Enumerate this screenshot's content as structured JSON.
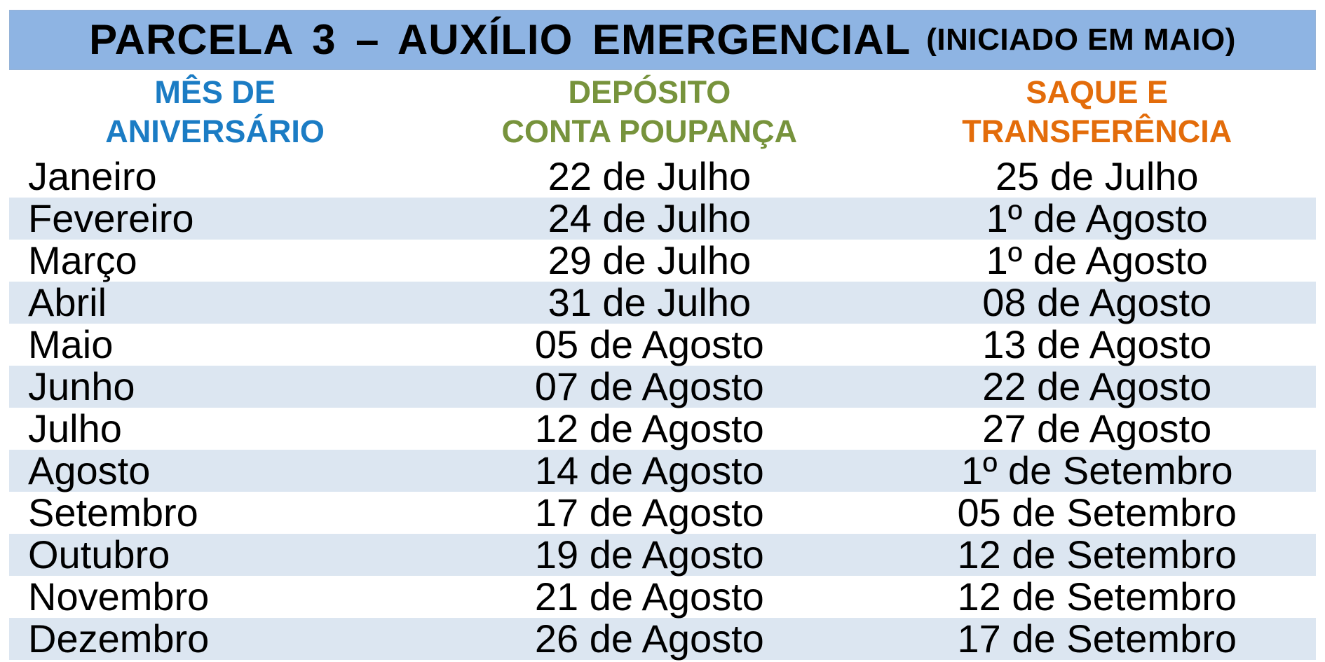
{
  "title": {
    "main": "PARCELA 3 – AUXÍLIO EMERGENCIAL",
    "note": "(INICIADO EM MAIO)"
  },
  "columns": [
    {
      "key": "month",
      "label": "MÊS DE\nANIVERSÁRIO",
      "color": "#1B7CC4"
    },
    {
      "key": "deposit",
      "label": "DEPÓSITO\nCONTA POUPANÇA",
      "color": "#77933C"
    },
    {
      "key": "saque",
      "label": "SAQUE E\nTRANSFERÊNCIA",
      "color": "#E36C0A"
    }
  ],
  "colors": {
    "title_bar_bg": "#8EB4E3",
    "stripe_row_bg": "#DCE6F1",
    "title_text": "#000000",
    "body_text": "#000000"
  },
  "rows": [
    {
      "month": "Janeiro",
      "deposit": "22 de Julho",
      "saque": "25 de Julho"
    },
    {
      "month": "Fevereiro",
      "deposit": "24 de Julho",
      "saque": "1º de Agosto"
    },
    {
      "month": "Março",
      "deposit": "29 de Julho",
      "saque": "1º de Agosto"
    },
    {
      "month": "Abril",
      "deposit": "31 de Julho",
      "saque": "08 de Agosto"
    },
    {
      "month": "Maio",
      "deposit": "05 de Agosto",
      "saque": "13 de Agosto"
    },
    {
      "month": "Junho",
      "deposit": "07 de Agosto",
      "saque": "22 de Agosto"
    },
    {
      "month": "Julho",
      "deposit": "12 de Agosto",
      "saque": "27 de Agosto"
    },
    {
      "month": "Agosto",
      "deposit": "14 de Agosto",
      "saque": "1º de Setembro"
    },
    {
      "month": "Setembro",
      "deposit": "17 de Agosto",
      "saque": "05 de Setembro"
    },
    {
      "month": "Outubro",
      "deposit": "19 de Agosto",
      "saque": "12 de Setembro"
    },
    {
      "month": "Novembro",
      "deposit": "21 de Agosto",
      "saque": "12 de Setembro"
    },
    {
      "month": "Dezembro",
      "deposit": "26 de Agosto",
      "saque": "17 de Setembro"
    }
  ],
  "chart_data": {
    "type": "table",
    "title": "PARCELA 3 – AUXÍLIO EMERGENCIAL (INICIADO EM MAIO)",
    "columns": [
      "MÊS DE ANIVERSÁRIO",
      "DEPÓSITO CONTA POUPANÇA",
      "SAQUE E TRANSFERÊNCIA"
    ],
    "rows": [
      [
        "Janeiro",
        "22 de Julho",
        "25 de Julho"
      ],
      [
        "Fevereiro",
        "24 de Julho",
        "1º de Agosto"
      ],
      [
        "Março",
        "29 de Julho",
        "1º de Agosto"
      ],
      [
        "Abril",
        "31 de Julho",
        "08 de Agosto"
      ],
      [
        "Maio",
        "05 de Agosto",
        "13 de Agosto"
      ],
      [
        "Junho",
        "07 de Agosto",
        "22 de Agosto"
      ],
      [
        "Julho",
        "12 de Agosto",
        "27 de Agosto"
      ],
      [
        "Agosto",
        "14 de Agosto",
        "1º de Setembro"
      ],
      [
        "Setembro",
        "17 de Agosto",
        "05 de Setembro"
      ],
      [
        "Outubro",
        "19 de Agosto",
        "12 de Setembro"
      ],
      [
        "Novembro",
        "21 de Agosto",
        "12 de Setembro"
      ],
      [
        "Dezembro",
        "26 de Agosto",
        "17 de Setembro"
      ]
    ],
    "layout": {
      "zebra_stripes": true,
      "header_colors": [
        "#1B7CC4",
        "#77933C",
        "#E36C0A"
      ]
    }
  }
}
